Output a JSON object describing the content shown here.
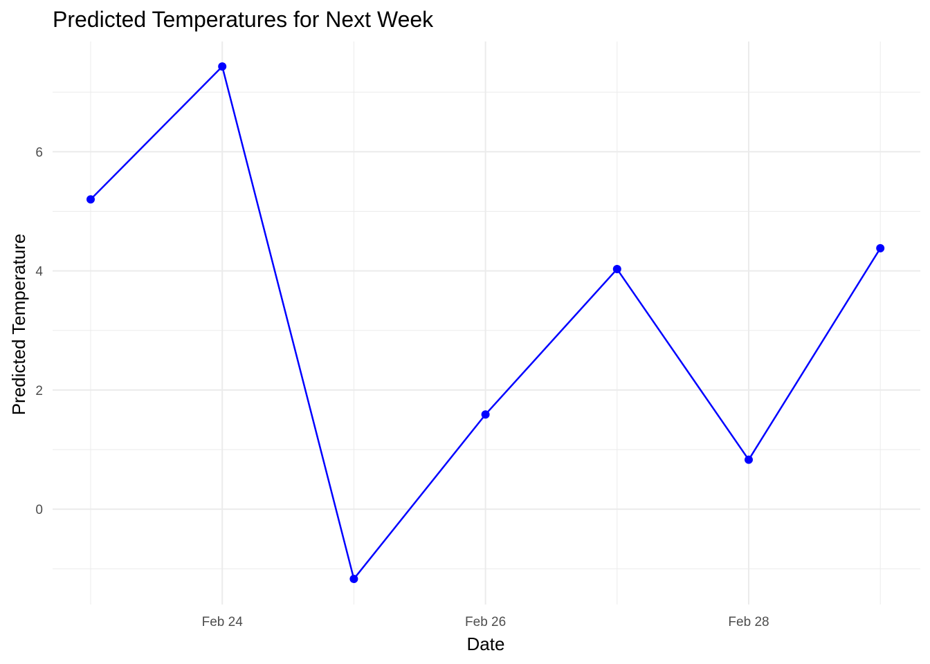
{
  "chart_data": {
    "type": "line",
    "title": "Predicted Temperatures for Next Week",
    "xlabel": "Date",
    "ylabel": "Predicted Temperature",
    "x": [
      "Feb 23",
      "Feb 24",
      "Feb 25",
      "Feb 26",
      "Feb 27",
      "Feb 28",
      "Feb 29"
    ],
    "values": [
      5.2,
      7.43,
      -1.17,
      1.59,
      4.03,
      0.83,
      4.38
    ],
    "x_tick_labels": [
      "Feb 24",
      "Feb 26",
      "Feb 28"
    ],
    "y_ticks": [
      0,
      2,
      4,
      6
    ],
    "ylim": [
      -1.6,
      7.85
    ],
    "grid": true,
    "line_color": "#0000ff",
    "point_color": "#0000ff"
  }
}
